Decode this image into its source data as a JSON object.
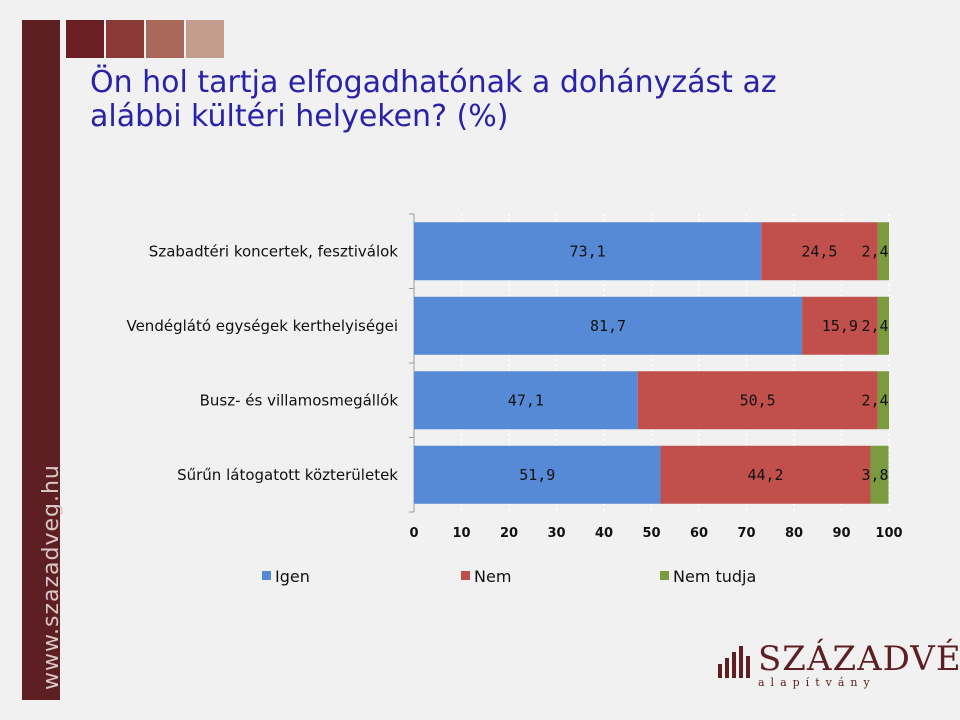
{
  "title": {
    "line1": "Ön hol tartja elfogadhatónak a dohányzást az",
    "line2": "alábbi kültéri helyeken? (%)"
  },
  "branding": {
    "site": "www.szazadveg.hu",
    "logo_name": "SZÁZADVÉG",
    "logo_sub": "alapítvány",
    "swatch_colors": [
      "#6b1f23",
      "#8a3a36",
      "#a9685a",
      "#c59d8e"
    ],
    "sidebar_color": "#5e1f22"
  },
  "chart_data": {
    "type": "bar",
    "orientation": "horizontal",
    "stacked": true,
    "categories": [
      "Szabadtéri koncertek, fesztiválok",
      "Vendéglátó egységek kerthelyiségei",
      "Busz- és villamosmegállók",
      "Sűrűn látogatott közterületek"
    ],
    "series": [
      {
        "name": "Igen",
        "color": "#568ad6",
        "values": [
          "73,1",
          "81,7",
          "47,1",
          "51,9"
        ]
      },
      {
        "name": "Nem",
        "color": "#c14f4c",
        "values": [
          "24,5",
          "15,9",
          "50,5",
          "44,2"
        ]
      },
      {
        "name": "Nem tudja",
        "color": "#7b9c3e",
        "values": [
          "2,4",
          "2,4",
          "2,4",
          "3,8"
        ]
      }
    ],
    "xlim": [
      0,
      100
    ],
    "xticks": [
      "0",
      "10",
      "20",
      "30",
      "40",
      "50",
      "60",
      "70",
      "80",
      "90",
      "100"
    ],
    "grid": true,
    "legend_position": "bottom"
  }
}
